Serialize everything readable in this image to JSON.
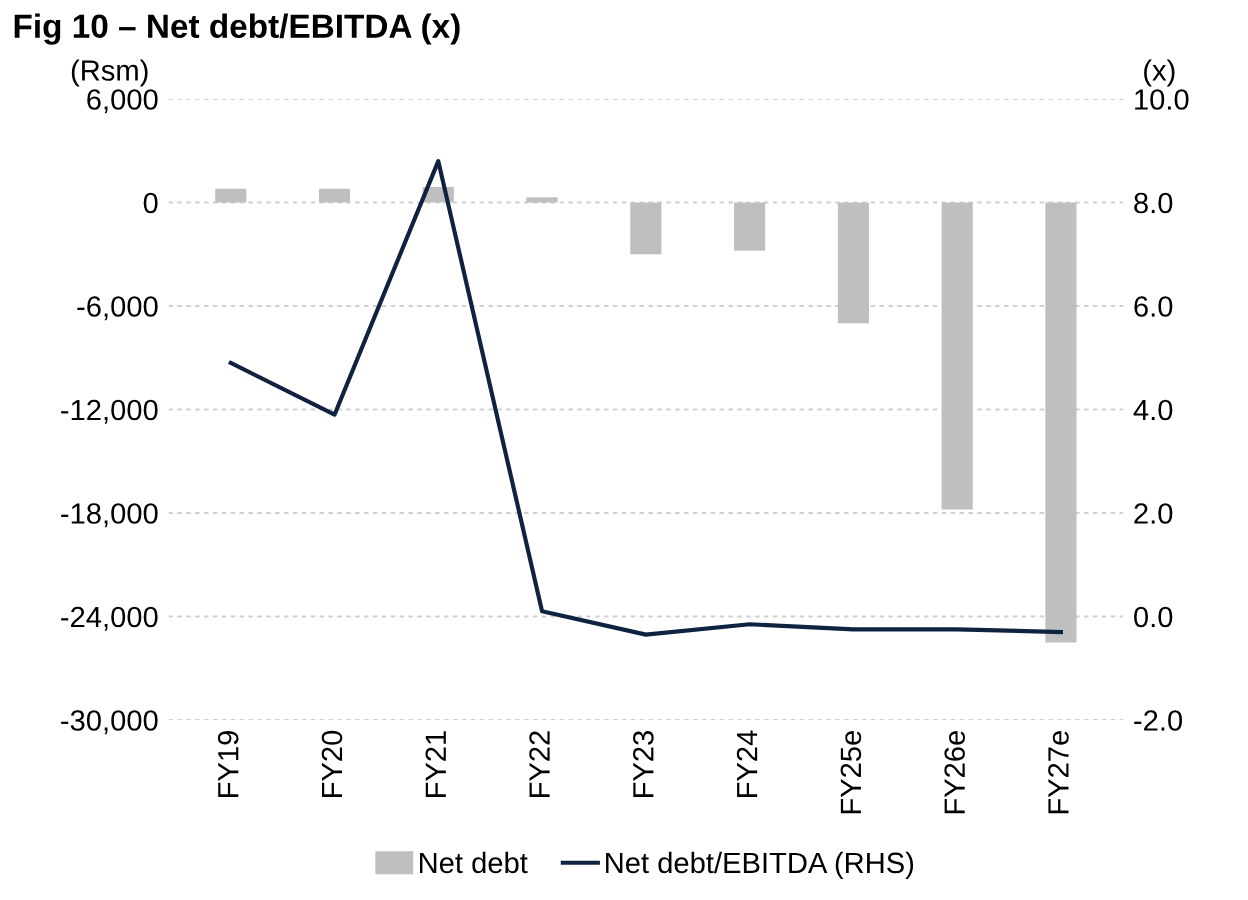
{
  "chart_data": {
    "type": "bar",
    "title": "Fig 10 – Net debt/EBITDA (x)",
    "ylabel": "(Rsm)",
    "y2label": "(x)",
    "categories": [
      "FY19",
      "FY20",
      "FY21",
      "FY22",
      "FY23",
      "FY24",
      "FY25e",
      "FY26e",
      "FY27e"
    ],
    "series": [
      {
        "name": "Net debt",
        "color": "#bfbfbf",
        "values": [
          800,
          800,
          900,
          300,
          -3000,
          -2800,
          -7000,
          -17800,
          -25500
        ]
      },
      {
        "name": "Net debt/EBITDA (RHS)",
        "type": "line",
        "axis": "y2",
        "color": "#0f2341",
        "values": [
          4.9,
          3.9,
          8.8,
          0.1,
          -0.35,
          -0.15,
          -0.25,
          -0.25,
          -0.3
        ]
      }
    ],
    "ylim": [
      -30000,
      6000
    ],
    "yticks": [
      {
        "value": -30000,
        "label": "-30,000"
      },
      {
        "value": -24000,
        "label": "-24,000"
      },
      {
        "value": -18000,
        "label": "-18,000"
      },
      {
        "value": -12000,
        "label": "-12,000"
      },
      {
        "value": -6000,
        "label": "-6,000"
      },
      0,
      {
        "value": 6000,
        "label": "6,000"
      }
    ],
    "y2lim": [
      -2,
      10
    ],
    "y2ticks": [
      {
        "value": -2,
        "label": "-2.0"
      },
      {
        "value": 0,
        "label": "0.0"
      },
      {
        "value": 2,
        "label": "2.0"
      },
      {
        "value": 4,
        "label": "4.0"
      },
      {
        "value": 6,
        "label": "6.0"
      },
      {
        "value": 8,
        "label": "8.0"
      },
      {
        "value": 10,
        "label": "10.0"
      }
    ],
    "grid": "y",
    "legend": "bottom",
    "marker": "none",
    "line_style": "solid"
  }
}
